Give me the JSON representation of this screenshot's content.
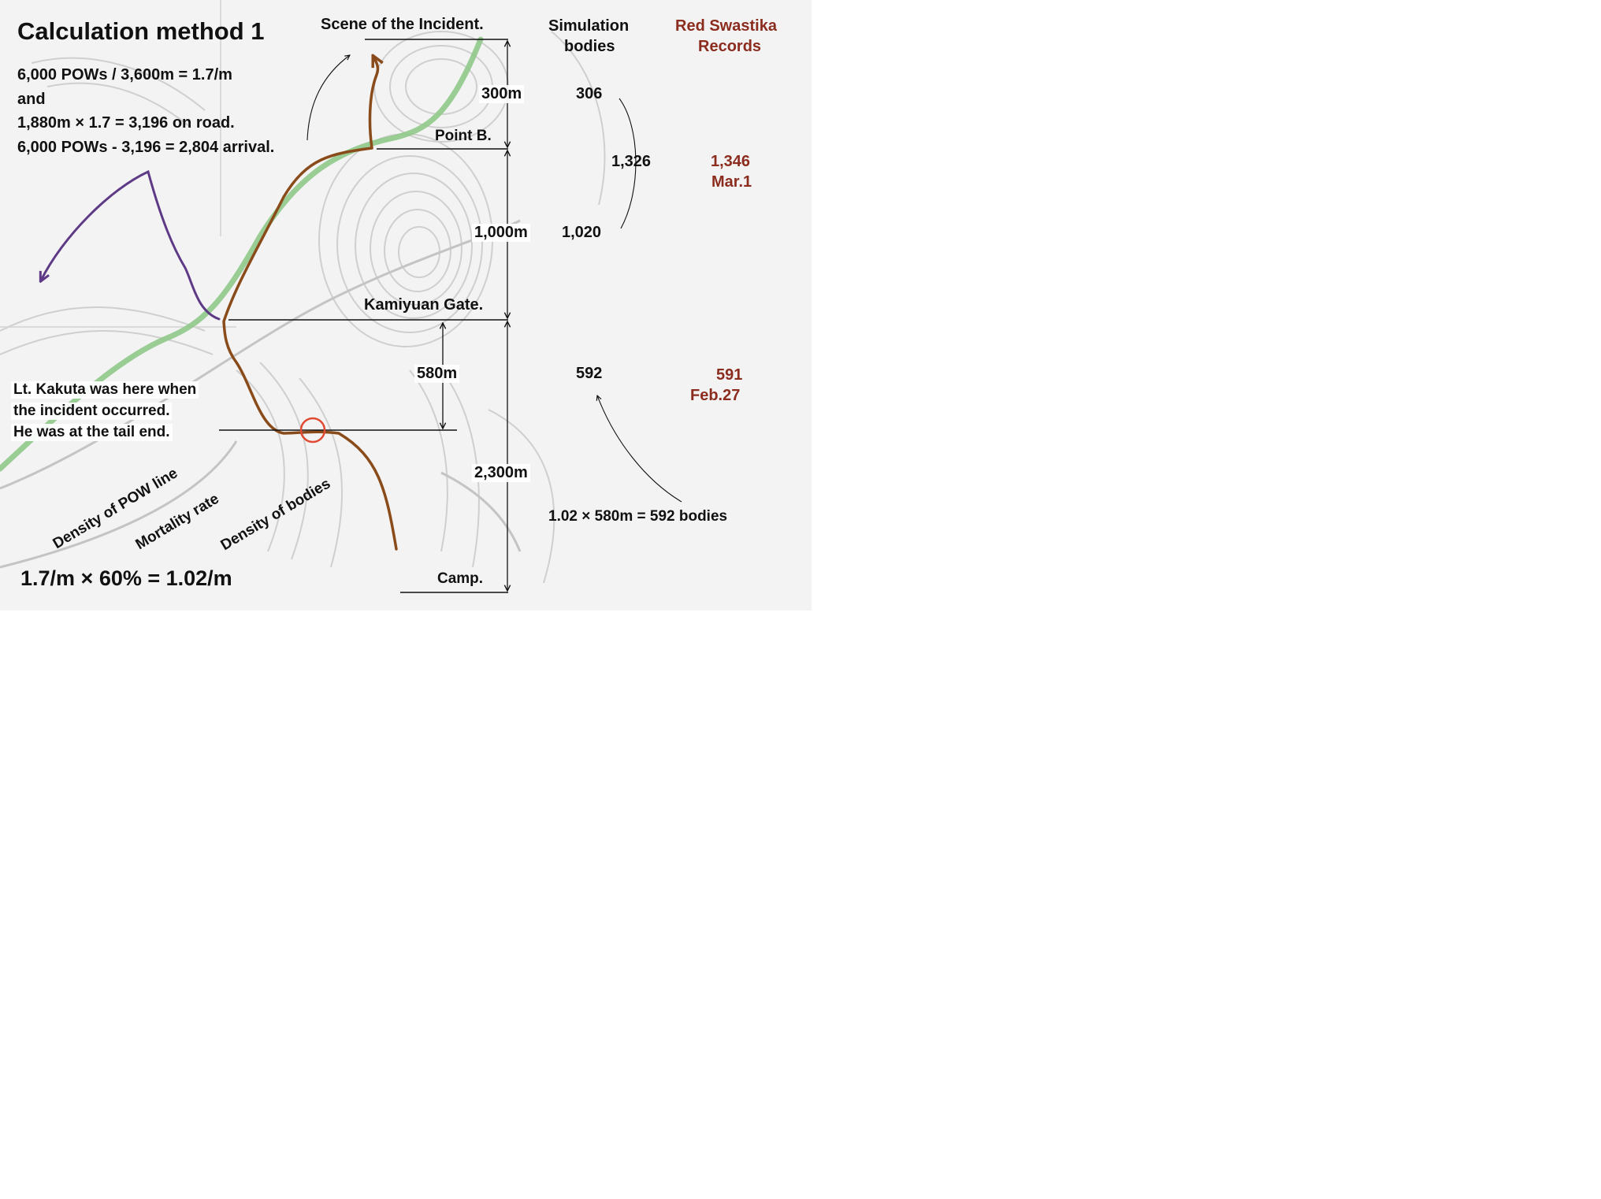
{
  "title": "Calculation method 1",
  "formula": {
    "line1": "6,000 POWs / 3,600m = 1.7/m",
    "line2": "and",
    "line3": "1,880m × 1.7 = 3,196 on road.",
    "line4": "6,000 POWs - 3,196 = 2,804 arrival."
  },
  "places": {
    "scene": "Scene of the Incident.",
    "point_b": "Point B.",
    "gate": "Kamiyuan Gate.",
    "camp": "Camp."
  },
  "distances": {
    "d300": "300m",
    "d1000": "1,000m",
    "d580": "580m",
    "d2300": "2,300m"
  },
  "columns": {
    "simulation_line1": "Simulation",
    "simulation_line2": "bodies",
    "red_line1": "Red Swastika",
    "red_line2": "Records"
  },
  "simulation": {
    "v306": "306",
    "v1020": "1,020",
    "sum": "1,326",
    "v592": "592",
    "calc": "1.02 × 580m = 592 bodies"
  },
  "red_swastika": {
    "v1346": "1,346",
    "date1": "Mar.1",
    "v591": "591",
    "date2": "Feb.27"
  },
  "kakuta": {
    "line1": "Lt. Kakuta was here when",
    "line2": "the incident occurred.",
    "line3": "He was at the tail end."
  },
  "labels": {
    "density_pow": "Density of POW line",
    "mortality": "Mortality rate",
    "density_bodies": "Density of bodies"
  },
  "result_formula": "1.7/m × 60% = 1.02/m",
  "colors": {
    "route_brown": "#8a4b1a",
    "road_green": "#8fc98a",
    "purple_route": "#5e3a86",
    "record_red": "#8b2c1e",
    "marker_circle": "#e04a32",
    "map_gray": "#c9c9c9"
  }
}
